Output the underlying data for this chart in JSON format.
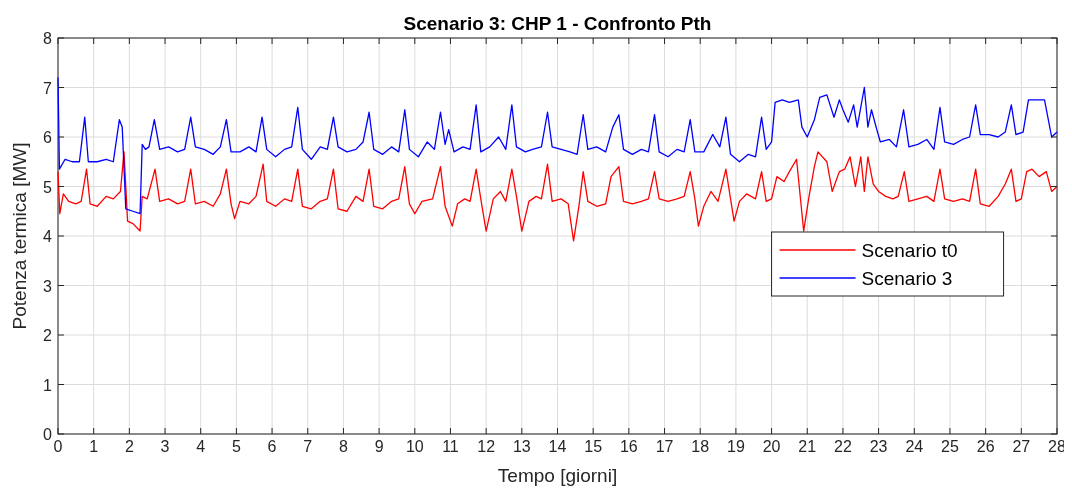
{
  "chart_data": {
    "type": "line",
    "title": "Scenario 3: CHP 1 - Confronto Pth",
    "xlabel": "Tempo [giorni]",
    "ylabel": "Potenza termica [MW]",
    "xlim": [
      0,
      28
    ],
    "xticks": [
      0,
      1,
      2,
      3,
      4,
      5,
      6,
      7,
      8,
      9,
      10,
      11,
      12,
      13,
      14,
      15,
      16,
      17,
      18,
      19,
      20,
      21,
      22,
      23,
      24,
      25,
      26,
      27,
      28
    ],
    "ylim": [
      0,
      8
    ],
    "yticks": [
      0,
      1,
      2,
      3,
      4,
      5,
      6,
      7,
      8
    ],
    "grid": true,
    "legend": "right",
    "series": [
      {
        "name": "Scenario t0",
        "color": "#ff0000",
        "x": [
          0,
          0.05,
          0.15,
          0.3,
          0.5,
          0.65,
          0.8,
          0.9,
          1.1,
          1.35,
          1.55,
          1.75,
          1.85,
          1.95,
          2.1,
          2.3,
          2.36,
          2.5,
          2.72,
          2.85,
          3.1,
          3.35,
          3.55,
          3.72,
          3.85,
          4.1,
          4.35,
          4.55,
          4.72,
          4.85,
          4.95,
          5.1,
          5.35,
          5.55,
          5.75,
          5.85,
          6.1,
          6.35,
          6.55,
          6.72,
          6.85,
          7.1,
          7.35,
          7.55,
          7.72,
          7.85,
          8.1,
          8.35,
          8.55,
          8.72,
          8.85,
          9.1,
          9.35,
          9.55,
          9.72,
          9.85,
          10.0,
          10.2,
          10.5,
          10.72,
          10.85,
          11.05,
          11.2,
          11.4,
          11.55,
          11.72,
          11.85,
          12.0,
          12.2,
          12.4,
          12.55,
          12.72,
          12.85,
          13.0,
          13.2,
          13.4,
          13.55,
          13.72,
          13.85,
          14.1,
          14.3,
          14.45,
          14.6,
          14.72,
          14.85,
          15.1,
          15.35,
          15.5,
          15.72,
          15.85,
          16.1,
          16.35,
          16.55,
          16.72,
          16.85,
          17.1,
          17.35,
          17.55,
          17.72,
          17.85,
          17.95,
          18.1,
          18.3,
          18.5,
          18.72,
          18.85,
          18.95,
          19.1,
          19.3,
          19.55,
          19.72,
          19.85,
          20.0,
          20.15,
          20.35,
          20.5,
          20.7,
          20.9,
          21.05,
          21.2,
          21.3,
          21.55,
          21.7,
          21.9,
          22.05,
          22.2,
          22.35,
          22.5,
          22.6,
          22.7,
          22.85,
          23.0,
          23.2,
          23.4,
          23.55,
          23.72,
          23.85,
          24.1,
          24.35,
          24.55,
          24.72,
          24.85,
          25.1,
          25.35,
          25.55,
          25.72,
          25.85,
          26.1,
          26.35,
          26.55,
          26.72,
          26.85,
          27.0,
          27.15,
          27.3,
          27.5,
          27.7,
          27.85,
          28.0
        ],
        "values": [
          5.3,
          4.45,
          4.85,
          4.7,
          4.65,
          4.7,
          5.35,
          4.65,
          4.6,
          4.8,
          4.75,
          4.9,
          5.7,
          4.3,
          4.25,
          4.1,
          4.8,
          4.75,
          5.35,
          4.7,
          4.75,
          4.65,
          4.7,
          5.35,
          4.65,
          4.7,
          4.6,
          4.85,
          5.35,
          4.65,
          4.35,
          4.7,
          4.65,
          4.8,
          5.45,
          4.7,
          4.6,
          4.75,
          4.7,
          5.35,
          4.6,
          4.55,
          4.7,
          4.75,
          5.35,
          4.55,
          4.5,
          4.8,
          4.7,
          5.35,
          4.6,
          4.55,
          4.7,
          4.75,
          5.4,
          4.65,
          4.45,
          4.7,
          4.75,
          5.4,
          4.6,
          4.2,
          4.65,
          4.75,
          4.7,
          5.35,
          4.75,
          4.1,
          4.75,
          4.9,
          4.7,
          5.35,
          4.8,
          4.1,
          4.7,
          4.8,
          4.75,
          5.45,
          4.7,
          4.75,
          4.65,
          3.9,
          4.6,
          5.3,
          4.7,
          4.6,
          4.65,
          5.2,
          5.4,
          4.7,
          4.65,
          4.7,
          4.75,
          5.3,
          4.75,
          4.7,
          4.75,
          4.8,
          5.3,
          4.75,
          4.2,
          4.6,
          4.9,
          4.7,
          5.35,
          4.75,
          4.3,
          4.7,
          4.85,
          4.75,
          5.3,
          4.7,
          4.75,
          5.2,
          5.1,
          5.3,
          5.55,
          4.1,
          4.8,
          5.4,
          5.7,
          5.5,
          4.9,
          5.3,
          5.35,
          5.6,
          5.0,
          5.6,
          4.9,
          5.6,
          5.05,
          4.9,
          4.8,
          4.75,
          4.8,
          5.3,
          4.7,
          4.75,
          4.8,
          4.7,
          5.35,
          4.75,
          4.7,
          4.75,
          4.7,
          5.35,
          4.65,
          4.6,
          4.8,
          5.05,
          5.35,
          4.7,
          4.75,
          5.3,
          5.35,
          5.2,
          5.3,
          4.9,
          5.0
        ]
      },
      {
        "name": "Scenario 3",
        "color": "#0000ff",
        "x": [
          0,
          0.04,
          0.2,
          0.4,
          0.6,
          0.75,
          0.85,
          1.1,
          1.35,
          1.55,
          1.72,
          1.8,
          1.9,
          2.1,
          2.3,
          2.36,
          2.45,
          2.55,
          2.7,
          2.85,
          3.1,
          3.35,
          3.55,
          3.72,
          3.85,
          4.1,
          4.35,
          4.55,
          4.72,
          4.85,
          5.1,
          5.35,
          5.55,
          5.72,
          5.85,
          6.1,
          6.35,
          6.55,
          6.72,
          6.85,
          7.1,
          7.35,
          7.55,
          7.72,
          7.85,
          8.1,
          8.35,
          8.55,
          8.72,
          8.85,
          9.1,
          9.35,
          9.55,
          9.72,
          9.85,
          10.1,
          10.35,
          10.55,
          10.72,
          10.85,
          10.95,
          11.1,
          11.35,
          11.55,
          11.72,
          11.85,
          12.1,
          12.35,
          12.55,
          12.72,
          12.85,
          13.1,
          13.3,
          13.55,
          13.72,
          13.85,
          14.1,
          14.35,
          14.55,
          14.72,
          14.85,
          15.1,
          15.35,
          15.55,
          15.72,
          15.85,
          16.1,
          16.35,
          16.55,
          16.72,
          16.85,
          17.1,
          17.35,
          17.55,
          17.72,
          17.85,
          18.1,
          18.35,
          18.55,
          18.72,
          18.85,
          19.1,
          19.35,
          19.55,
          19.72,
          19.85,
          20.0,
          20.1,
          20.3,
          20.5,
          20.75,
          20.85,
          21.0,
          21.2,
          21.35,
          21.55,
          21.75,
          21.9,
          22.0,
          22.15,
          22.3,
          22.4,
          22.6,
          22.7,
          22.8,
          22.95,
          23.05,
          23.3,
          23.5,
          23.7,
          23.85,
          24.1,
          24.35,
          24.55,
          24.72,
          24.85,
          25.1,
          25.35,
          25.55,
          25.72,
          25.85,
          26.1,
          26.35,
          26.55,
          26.72,
          26.85,
          27.05,
          27.2,
          27.45,
          27.65,
          27.85,
          28.0
        ],
        "values": [
          7.2,
          5.35,
          5.55,
          5.5,
          5.5,
          6.4,
          5.5,
          5.5,
          5.55,
          5.5,
          6.35,
          6.2,
          4.55,
          4.5,
          4.45,
          5.85,
          5.75,
          5.8,
          6.35,
          5.75,
          5.8,
          5.7,
          5.75,
          6.4,
          5.8,
          5.75,
          5.65,
          5.8,
          6.35,
          5.7,
          5.7,
          5.8,
          5.7,
          6.4,
          5.75,
          5.6,
          5.75,
          5.8,
          6.6,
          5.75,
          5.55,
          5.8,
          5.75,
          6.4,
          5.8,
          5.7,
          5.75,
          5.9,
          6.5,
          5.75,
          5.65,
          5.8,
          5.7,
          6.55,
          5.75,
          5.6,
          5.9,
          5.75,
          6.5,
          5.85,
          6.15,
          5.7,
          5.8,
          5.75,
          6.65,
          5.7,
          5.8,
          6.0,
          5.75,
          6.65,
          5.8,
          5.7,
          5.75,
          5.8,
          6.5,
          5.8,
          5.75,
          5.7,
          5.65,
          6.45,
          5.75,
          5.8,
          5.7,
          6.2,
          6.45,
          5.75,
          5.65,
          5.75,
          5.7,
          6.45,
          5.7,
          5.6,
          5.75,
          5.7,
          6.35,
          5.7,
          5.7,
          6.05,
          5.8,
          6.4,
          5.65,
          5.5,
          5.65,
          5.6,
          6.4,
          5.75,
          5.9,
          6.7,
          6.75,
          6.7,
          6.75,
          6.2,
          6.0,
          6.35,
          6.8,
          6.85,
          6.4,
          6.75,
          6.55,
          6.3,
          6.65,
          6.2,
          7.0,
          6.2,
          6.55,
          6.15,
          5.9,
          5.95,
          5.8,
          6.55,
          5.8,
          5.85,
          5.95,
          5.75,
          6.6,
          5.9,
          5.85,
          5.95,
          6.0,
          6.65,
          6.05,
          6.05,
          6.0,
          6.1,
          6.65,
          6.05,
          6.1,
          6.75,
          6.75,
          6.75,
          6.0,
          6.1
        ]
      }
    ]
  }
}
